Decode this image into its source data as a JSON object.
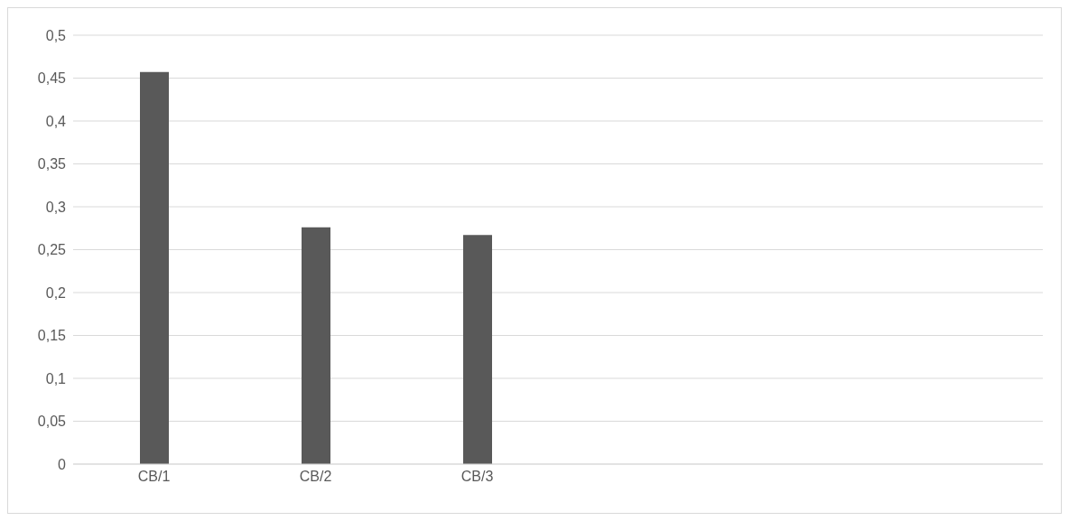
{
  "chart_data": {
    "type": "bar",
    "categories": [
      "CB/1",
      "CB/2",
      "CB/3",
      null,
      null,
      null
    ],
    "series": [
      {
        "color": "#595959",
        "values": [
          0.457,
          0.276,
          0.267,
          null,
          null,
          null
        ]
      }
    ],
    "ylim": [
      0,
      0.5
    ],
    "yticks": [
      {
        "value": 0,
        "label": "0"
      },
      {
        "value": 0.05,
        "label": "0,05"
      },
      {
        "value": 0.1,
        "label": "0,1"
      },
      {
        "value": 0.15,
        "label": "0,15"
      },
      {
        "value": 0.2,
        "label": "0,2"
      },
      {
        "value": 0.25,
        "label": "0,25"
      },
      {
        "value": 0.3,
        "label": "0,3"
      },
      {
        "value": 0.35,
        "label": "0,35"
      },
      {
        "value": 0.4,
        "label": "0,4"
      },
      {
        "value": 0.45,
        "label": "0,45"
      },
      {
        "value": 0.5,
        "label": "0,5"
      }
    ],
    "grid": "y"
  }
}
